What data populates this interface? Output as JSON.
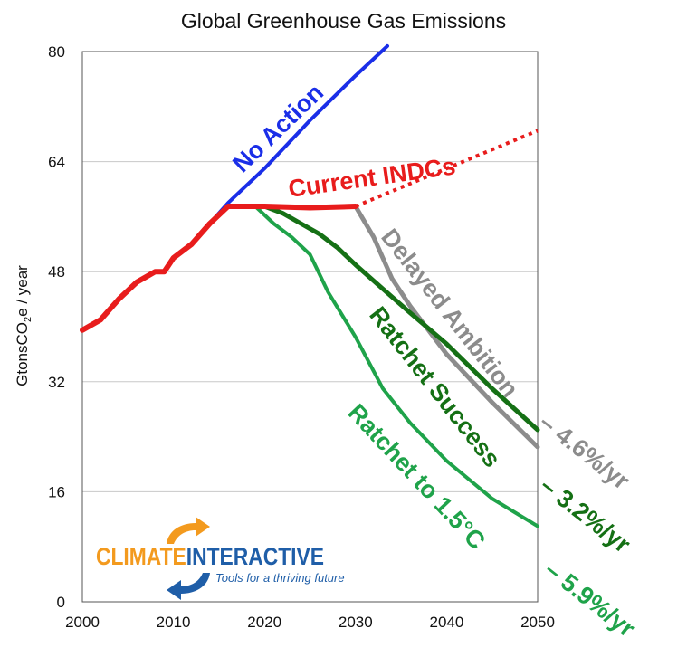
{
  "chart_data": {
    "type": "line",
    "title": "Global Greenhouse Gas Emissions",
    "ylabel_parts": [
      "GtonsCO",
      "2",
      "e / year"
    ],
    "xlim": [
      2000,
      2050
    ],
    "ylim": [
      0,
      80
    ],
    "x_ticks": [
      2000,
      2010,
      2020,
      2030,
      2040,
      2050
    ],
    "y_ticks": [
      0,
      16,
      32,
      48,
      64,
      80
    ],
    "grid": "horizontal",
    "series": [
      {
        "name": "No Action",
        "color": "#1a2ee8",
        "style": "solid",
        "points": [
          [
            2000,
            39.5
          ],
          [
            2002,
            41
          ],
          [
            2004,
            44
          ],
          [
            2006,
            46.5
          ],
          [
            2008,
            48
          ],
          [
            2009,
            48
          ],
          [
            2010,
            50
          ],
          [
            2012,
            52
          ],
          [
            2014,
            55
          ],
          [
            2016,
            58
          ],
          [
            2020,
            63
          ],
          [
            2025,
            70
          ],
          [
            2030,
            76.5
          ],
          [
            2033.5,
            80.8
          ]
        ]
      },
      {
        "name": "Current INDCs",
        "color": "#e81c1c",
        "style": "solid",
        "points": [
          [
            2000,
            39.5
          ],
          [
            2002,
            41
          ],
          [
            2004,
            44
          ],
          [
            2006,
            46.5
          ],
          [
            2008,
            48
          ],
          [
            2009,
            48
          ],
          [
            2010,
            50
          ],
          [
            2012,
            52
          ],
          [
            2014,
            55
          ],
          [
            2016,
            57.5
          ],
          [
            2020,
            57.5
          ],
          [
            2025,
            57.3
          ],
          [
            2030,
            57.5
          ]
        ]
      },
      {
        "name": "Current INDCs extension",
        "color": "#e81c1c",
        "style": "dotted",
        "points": [
          [
            2030,
            57.5
          ],
          [
            2050,
            68.5
          ]
        ]
      },
      {
        "name": "Delayed Ambition",
        "color": "#8c8c8c",
        "style": "solid",
        "points": [
          [
            2030,
            57.5
          ],
          [
            2032,
            53
          ],
          [
            2034,
            47
          ],
          [
            2036,
            43
          ],
          [
            2038,
            39.5
          ],
          [
            2040,
            36
          ],
          [
            2045,
            29
          ],
          [
            2050,
            22.5
          ]
        ]
      },
      {
        "name": "Ratchet Success",
        "color": "#157015",
        "style": "solid",
        "points": [
          [
            2020,
            57.5
          ],
          [
            2022,
            56.5
          ],
          [
            2024,
            55
          ],
          [
            2026,
            53.5
          ],
          [
            2028,
            51.5
          ],
          [
            2030,
            49
          ],
          [
            2033,
            45.5
          ],
          [
            2036,
            42
          ],
          [
            2040,
            37.5
          ],
          [
            2045,
            31
          ],
          [
            2050,
            25
          ]
        ]
      },
      {
        "name": "Ratchet to 1.5°C",
        "color": "#1fa34a",
        "style": "solid",
        "points": [
          [
            2019,
            57.5
          ],
          [
            2021,
            55
          ],
          [
            2023,
            53
          ],
          [
            2025,
            50.5
          ],
          [
            2027,
            45
          ],
          [
            2030,
            38.5
          ],
          [
            2033,
            31
          ],
          [
            2036,
            26
          ],
          [
            2040,
            20.5
          ],
          [
            2045,
            15
          ],
          [
            2050,
            11
          ]
        ]
      }
    ],
    "annotations": {
      "no_action": "No Action",
      "current_indcs": "Current INDCs",
      "delayed_ambition": "Delayed Ambition",
      "ratchet_success": "Ratchet Success",
      "ratchet_15": "Ratchet to 1.5°C",
      "rate_delayed": "– 4.6%/yr",
      "rate_success": "– 3.2%/yr",
      "rate_15": "– 5.9%/yr"
    }
  },
  "logo": {
    "name": "CLIMATE INTERACTIVE",
    "word1": "CLIMATE",
    "word2": "INTERACTIVE",
    "tagline": "Tools for a thriving future",
    "colors": {
      "orange": "#f39a1e",
      "blue": "#1f5ea8"
    }
  }
}
